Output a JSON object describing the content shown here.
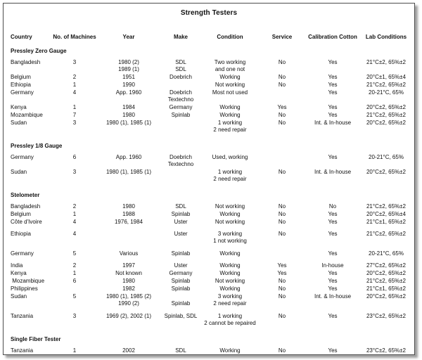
{
  "title": "Strength Testers",
  "frame": {
    "background_color": "#ffffff",
    "border_color": "#4d4d4d",
    "shadow_color": "#b3b3b3",
    "text_color": "#111111"
  },
  "table": {
    "columns": [
      "Country",
      "No. of Machines",
      "Year",
      "Make",
      "Condition",
      "Service",
      "Calibration Cotton",
      "Lab Conditions"
    ],
    "sections": [
      {
        "title": "Pressley Zero Gauge",
        "rows": [
          {
            "country": "Bangladesh",
            "machines": "3",
            "year": "1980 (2)\n1989 (1)",
            "make": "SDL\nSDL",
            "condition": "Two working\nand one not",
            "service": "No",
            "calibration": "Yes",
            "lab": "21°C±2, 65%±2"
          },
          {
            "country": "Belgium",
            "machines": "2",
            "year": "1951",
            "make": "Doebrich",
            "condition": "Working",
            "service": "No",
            "calibration": "Yes",
            "lab": "20°C±1, 65%±4"
          },
          {
            "country": "Ethiopia",
            "machines": "1",
            "year": "1990",
            "make": "",
            "condition": "Not working",
            "service": "No",
            "calibration": "Yes",
            "lab": "21°C±2, 65%±2"
          },
          {
            "country": "Germany",
            "machines": "4",
            "year": "App. 1960",
            "make": "Doebrich\nTextechno",
            "condition": "Most not used",
            "service": "",
            "calibration": "Yes",
            "lab": "20-21°C, 65%"
          },
          {
            "country": "Kenya",
            "machines": "1",
            "year": "1984",
            "make": "Germany",
            "condition": "Working",
            "service": "Yes",
            "calibration": "Yes",
            "lab": "20°C±2, 65%±2"
          },
          {
            "country": "Mozambique",
            "machines": "7",
            "year": "1980",
            "make": "Spinlab",
            "condition": "Working",
            "service": "No",
            "calibration": "Yes",
            "lab": "21°C±2, 65%±2"
          },
          {
            "country": "Sudan",
            "machines": "3",
            "year": "1980 (1), 1985 (1)",
            "make": "",
            "condition": "1 working\n2 need repair",
            "service": "No",
            "calibration": "Int. & In-house",
            "lab": "20°C±2, 65%±2"
          }
        ]
      },
      {
        "title": "Pressley 1/8 Gauge",
        "rows": [
          {
            "country": "Germany",
            "machines": "6",
            "year": "App. 1960",
            "make": "Doebrich\nTextechno",
            "condition": "Used, working",
            "service": "",
            "calibration": "Yes",
            "lab": "20-21°C, 65%"
          },
          {
            "country": "Sudan",
            "machines": "3",
            "year": "1980 (1), 1985 (1)",
            "make": "",
            "condition": "1 working\n2 need repair",
            "service": "No",
            "calibration": "Int. & In-house",
            "lab": "20°C±2, 65%±2"
          }
        ]
      },
      {
        "title": "Stelometer",
        "rows": [
          {
            "country": "Bangladesh",
            "machines": "2",
            "year": "1980",
            "make": "SDL",
            "condition": "Not working",
            "service": "No",
            "calibration": "No",
            "lab": "21°C±2, 65%±2"
          },
          {
            "country": "Belgium",
            "machines": "1",
            "year": "1988",
            "make": "Spinlab",
            "condition": "Working",
            "service": "No",
            "calibration": "Yes",
            "lab": "20°C±2, 65%±4"
          },
          {
            "country": "Côte d'Ivoire",
            "machines": "4",
            "year": "1976, 1984",
            "make": "Uster",
            "condition": "Not working",
            "service": "No",
            "calibration": "Yes",
            "lab": "21°C±1, 65%±2"
          },
          {
            "country": "Ethiopia",
            "machines": "4",
            "year": "",
            "make": "Uster",
            "condition": "3 working\n1 not working",
            "service": "No",
            "calibration": "Yes",
            "lab": "21°C±2, 65%±2",
            "gap_before": true
          },
          {
            "country": "Germany",
            "machines": "5",
            "year": "Various",
            "make": "Spinlab",
            "condition": "Working",
            "service": "",
            "calibration": "Yes",
            "lab": "20-21°C, 65%",
            "gap_before": true
          },
          {
            "country": "India",
            "machines": "2",
            "year": "1997",
            "make": "Uster",
            "condition": "Working",
            "service": "Yes",
            "calibration": "In-house",
            "lab": "27°C±2, 65%±2",
            "gap_before": true
          },
          {
            "country": "Kenya",
            "machines": "1",
            "year": "Not known",
            "make": "Germany",
            "condition": "Working",
            "service": "Yes",
            "calibration": "Yes",
            "lab": "20°C±2, 65%±2"
          },
          {
            "country": " Mozambique",
            "machines": "6",
            "year": "1980",
            "make": "Spinlab",
            "condition": "Not working",
            "service": "No",
            "calibration": "Yes",
            "lab": "21°C±2, 65%±2"
          },
          {
            "country": "Philippines",
            "machines": "",
            "year": "1982",
            "make": "Spinlab",
            "condition": "Working",
            "service": "No",
            "calibration": "Yes",
            "lab": "21°C±1, 65%±2"
          },
          {
            "country": "Sudan",
            "machines": "5",
            "year": "1980 (1), 1985 (2)\n1990 (2)",
            "make": "\nSpinlab",
            "condition": "3 working\n2 need repair",
            "service": "No",
            "calibration": "Int. & In-house",
            "lab": "20°C±2, 65%±2"
          },
          {
            "country": "Tanzania",
            "machines": "3",
            "year": "1969 (2), 2002 (1)",
            "make": "Spinlab, SDL",
            "condition": "1 working\n2 cannot be repaired",
            "service": "No",
            "calibration": "Yes",
            "lab": "23°C±2, 65%±2",
            "gap_before": true
          }
        ]
      },
      {
        "title": "Single Fiber Tester",
        "rows": [
          {
            "country": "Tanzania",
            "machines": "1",
            "year": "2002",
            "make": "SDL",
            "condition": "Working",
            "service": "No",
            "calibration": "Yes",
            "lab": "23°C±2, 65%±2"
          }
        ]
      }
    ]
  }
}
